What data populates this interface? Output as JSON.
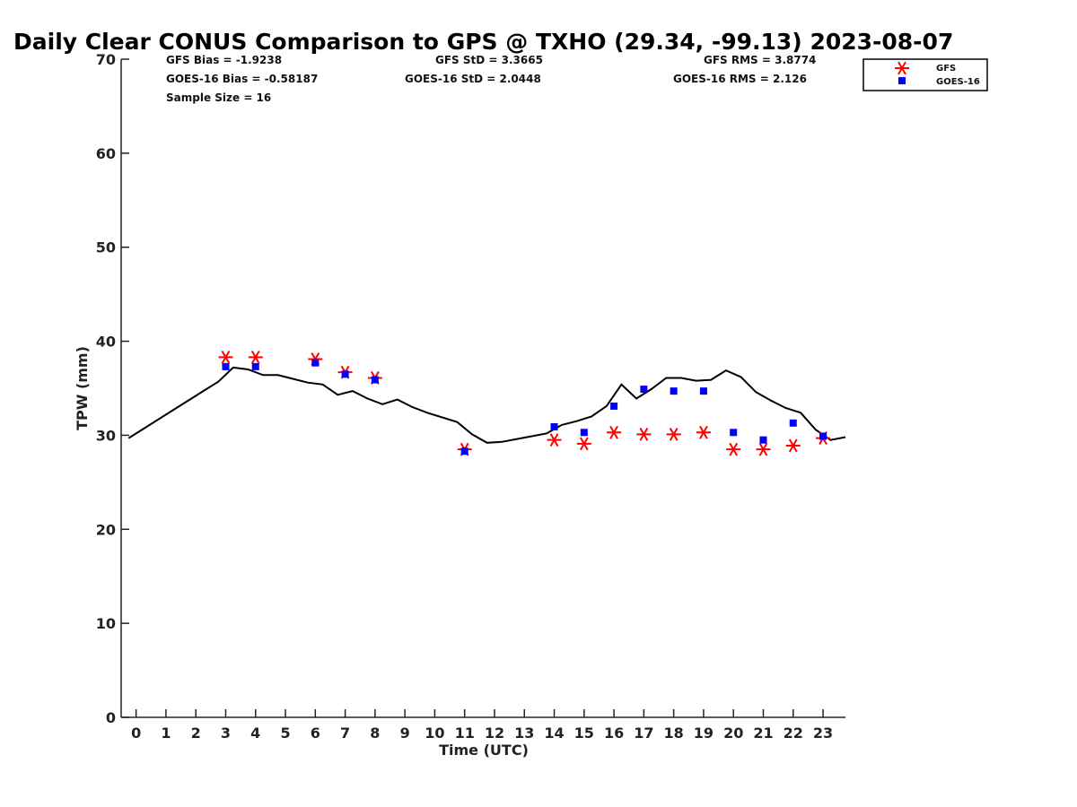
{
  "chart_data": {
    "type": "scatter",
    "title": "Daily Clear CONUS Comparison to GPS @ TXHO (29.34, -99.13) 2023-08-07",
    "xlabel": "Time (UTC)",
    "ylabel": "TPW (mm)",
    "xlim": [
      -0.5,
      23.75
    ],
    "ylim": [
      0,
      70
    ],
    "xticks": [
      0,
      1,
      2,
      3,
      4,
      5,
      6,
      7,
      8,
      9,
      10,
      11,
      12,
      13,
      14,
      15,
      16,
      17,
      18,
      19,
      20,
      21,
      22,
      23
    ],
    "yticks": [
      0,
      10,
      20,
      30,
      40,
      50,
      60,
      70
    ],
    "grid": false,
    "legend_position": "top-right",
    "stats": [
      [
        "GFS Bias = -1.9238",
        "GFS StD = 3.3665",
        "GFS RMS = 3.8774"
      ],
      [
        "GOES-16 Bias = -0.58187",
        "GOES-16 StD = 2.0448",
        "GOES-16 RMS = 2.126"
      ],
      [
        "Sample Size = 16"
      ]
    ],
    "series": [
      {
        "name": "GFS",
        "marker": "asterisk",
        "color": "#ff0000",
        "x": [
          3,
          4,
          6,
          7,
          8,
          11,
          14,
          15,
          16,
          17,
          18,
          19,
          20,
          21,
          22,
          23
        ],
        "y": [
          38.3,
          38.3,
          38.1,
          36.7,
          36.1,
          28.5,
          29.5,
          29.1,
          30.3,
          30.1,
          30.1,
          30.3,
          28.5,
          28.5,
          28.9,
          29.7
        ]
      },
      {
        "name": "GOES-16",
        "marker": "square",
        "color": "#0000ff",
        "x": [
          3,
          4,
          6,
          7,
          8,
          11,
          14,
          15,
          16,
          17,
          18,
          19,
          20,
          21,
          22,
          23
        ],
        "y": [
          37.3,
          37.3,
          37.7,
          36.5,
          35.9,
          28.3,
          30.9,
          30.3,
          33.1,
          34.9,
          34.7,
          34.7,
          30.3,
          29.5,
          31.3,
          29.9
        ]
      },
      {
        "name": "GPS",
        "marker": "line",
        "color": "#000000",
        "x": [
          -0.25,
          0.25,
          0.75,
          1.25,
          1.75,
          2.25,
          2.75,
          3.25,
          3.75,
          4.25,
          4.75,
          5.25,
          5.75,
          6.25,
          6.75,
          7.25,
          7.75,
          8.25,
          8.75,
          9.25,
          9.75,
          10.25,
          10.75,
          11.25,
          11.75,
          12.25,
          12.75,
          13.25,
          13.75,
          14.25,
          14.75,
          15.25,
          15.75,
          16.25,
          16.75,
          17.25,
          17.75,
          18.25,
          18.75,
          19.25,
          19.75,
          20.25,
          20.75,
          21.25,
          21.75,
          22.25,
          22.75,
          23.25,
          23.75
        ],
        "y": [
          29.7,
          30.7,
          31.7,
          32.7,
          33.7,
          34.7,
          35.7,
          37.2,
          37.0,
          36.4,
          36.4,
          36.0,
          35.6,
          35.4,
          34.3,
          34.7,
          33.9,
          33.3,
          33.8,
          33.0,
          32.4,
          31.9,
          31.4,
          30.1,
          29.2,
          29.3,
          29.6,
          29.9,
          30.2,
          31.1,
          31.5,
          32.0,
          33.1,
          35.4,
          33.9,
          34.9,
          36.1,
          36.1,
          35.8,
          35.9,
          36.9,
          36.2,
          34.6,
          33.7,
          32.9,
          32.4,
          30.6,
          29.5,
          29.8
        ]
      }
    ]
  }
}
